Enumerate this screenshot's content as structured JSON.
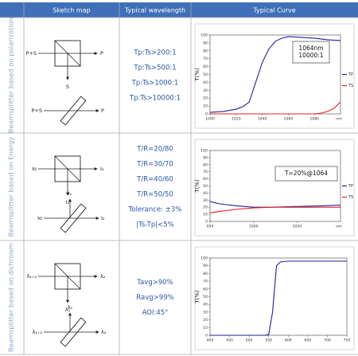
{
  "header": {
    "columns": [
      "Sketch map",
      "Typical wavelength",
      "Typical Curve"
    ]
  },
  "rows": [
    {
      "label": "Beamsplitter based on polarization",
      "sketch": {
        "top": {
          "left": "P+S",
          "right": "P",
          "down": "S"
        },
        "bottom": {
          "left": "P+S",
          "right": "P"
        }
      },
      "wavelength": [
        "Tp:Ts>200:1",
        "Tp:Ts>500:1",
        "Tp:Ts>1000:1",
        "Tp:Ts>10000:1"
      ],
      "curve": {
        "type": "line",
        "ylabel": "T(%)",
        "x_unit": "nm",
        "xlim": [
          1000,
          1100
        ],
        "xticks": [
          1000,
          1020,
          1040,
          1060,
          1080
        ],
        "ylim": [
          0,
          100
        ],
        "yticks": [
          0,
          10,
          20,
          30,
          40,
          50,
          60,
          70,
          80,
          90,
          100
        ],
        "annotation": [
          "1064nm",
          "10000:1"
        ],
        "series": [
          {
            "name": "TP",
            "color": "#1f1f9e",
            "x": [
              1000,
              1010,
              1020,
              1025,
              1030,
              1035,
              1040,
              1045,
              1050,
              1055,
              1060,
              1070,
              1080,
              1090,
              1100
            ],
            "values": [
              2,
              3,
              6,
              9,
              15,
              40,
              65,
              82,
              92,
              96,
              98,
              97,
              96,
              94,
              93
            ]
          },
          {
            "name": "TS",
            "color": "#e02020",
            "x": [
              1000,
              1080,
              1085,
              1090,
              1095,
              1100
            ],
            "values": [
              0,
              0,
              1,
              3,
              7,
              15
            ]
          }
        ]
      }
    },
    {
      "label": "Beamsplitter based on Energy",
      "sketch": {
        "top": {
          "left": "Io",
          "right": "I₂",
          "down": "I₁"
        },
        "bottom": {
          "above": "I₁",
          "left": "Io",
          "right": "I₂"
        }
      },
      "wavelength": [
        "T/R=20/80",
        "T/R=30/70",
        "T/R=40/60",
        "T/R=50/50",
        "Tolerance: ±3%",
        "|Ts-Tp|<5%"
      ],
      "curve": {
        "type": "line",
        "ylabel": "T(%)",
        "x_unit": "nm",
        "xlim": [
          950,
          1100
        ],
        "xticks": [
          950,
          1000,
          1050
        ],
        "ylim": [
          0,
          100
        ],
        "yticks": [
          0,
          10,
          20,
          30,
          40,
          50,
          60,
          70,
          80,
          90,
          100
        ],
        "annotation": [
          "T=20%@1064"
        ],
        "series": [
          {
            "name": "TP",
            "color": "#1f1f9e",
            "x": [
              950,
              960,
              980,
              1000,
              1020,
              1050,
              1080,
              1100
            ],
            "values": [
              28,
              25,
              22,
              20,
              20,
              21,
              22,
              23
            ]
          },
          {
            "name": "TS",
            "color": "#e02020",
            "x": [
              950,
              960,
              980,
              1000,
              1020,
              1050,
              1080,
              1100
            ],
            "values": [
              12,
              14,
              17,
              19,
              20,
              20,
              20,
              20
            ]
          }
        ]
      }
    },
    {
      "label": "Beamsplitter based on dichroism",
      "sketch": {
        "top": {
          "left": "λ₁₊₂",
          "right": "λ₂",
          "down": "λ₁"
        },
        "bottom": {
          "above": "λ₁",
          "left": "λ₁₊₂",
          "right": "λ₂"
        }
      },
      "wavelength": [
        "Tavg>90%",
        "Ravg>99%",
        "AOI:45°"
      ],
      "curve": {
        "type": "line",
        "ylabel": "T(%)",
        "xlim": [
          400,
          750
        ],
        "xticks": [
          400,
          450,
          500,
          550,
          600,
          650,
          700,
          750
        ],
        "ylim": [
          0,
          100
        ],
        "yticks": [
          0,
          10,
          20,
          30,
          40,
          50,
          60,
          70,
          80,
          90,
          100
        ],
        "series": [
          {
            "color": "#1f1f9e",
            "x": [
              400,
              540,
              550,
              560,
              570,
              580,
              600,
              750
            ],
            "values": [
              0,
              0,
              1,
              30,
              90,
              95,
              96,
              96
            ]
          }
        ]
      }
    }
  ]
}
